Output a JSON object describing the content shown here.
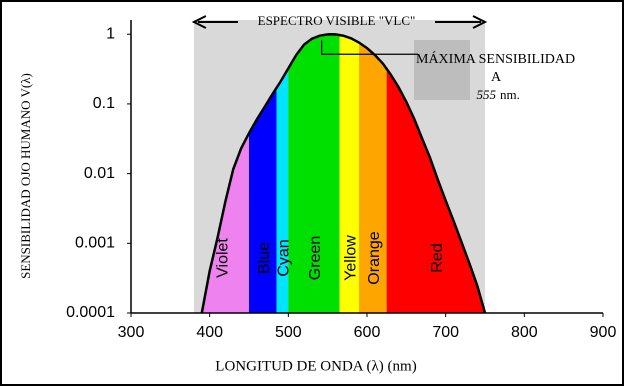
{
  "chart_data": {
    "type": "line",
    "xlabel": "LONGITUD DE ONDA (λ) (nm)",
    "ylabel": "SENSIBILIDAD OJO HUMANO V(λ)",
    "x": [
      390,
      400,
      410,
      420,
      430,
      440,
      450,
      460,
      470,
      480,
      490,
      500,
      510,
      520,
      530,
      540,
      550,
      555,
      560,
      570,
      580,
      590,
      600,
      610,
      620,
      630,
      640,
      650,
      660,
      670,
      680,
      690,
      700,
      710,
      720,
      730,
      740,
      750
    ],
    "values": [
      0.0001,
      0.0004,
      0.0012,
      0.004,
      0.0116,
      0.023,
      0.038,
      0.06,
      0.091,
      0.139,
      0.208,
      0.323,
      0.503,
      0.71,
      0.862,
      0.954,
      0.995,
      1,
      0.995,
      0.952,
      0.87,
      0.757,
      0.631,
      0.503,
      0.381,
      0.265,
      0.175,
      0.107,
      0.061,
      0.032,
      0.017,
      0.0082,
      0.0041,
      0.0021,
      0.00105,
      0.00052,
      0.00025,
      0.0001
    ],
    "color": "#000000",
    "log_y": true,
    "xlim": [
      300,
      900
    ],
    "ylim": [
      0.0001,
      1.6
    ],
    "xticks": [
      300,
      400,
      500,
      600,
      700,
      800,
      900
    ],
    "yticks": [
      1,
      0.1,
      0.01,
      0.001,
      0.0001
    ],
    "visible_range": {
      "label": "ESPECTRO VISIBLE \"VLC\"",
      "start": 380,
      "end": 750,
      "color": "#d9d9d9"
    },
    "bands": [
      {
        "name": "Violet",
        "color": "#ee82ee",
        "start": 380,
        "end": 450
      },
      {
        "name": "Blue",
        "color": "#0000ff",
        "start": 450,
        "end": 485
      },
      {
        "name": "Cyan",
        "color": "#00e5ff",
        "start": 485,
        "end": 500
      },
      {
        "name": "Green",
        "color": "#00e000",
        "start": 500,
        "end": 565
      },
      {
        "name": "Yellow",
        "color": "#ffff00",
        "start": 565,
        "end": 590
      },
      {
        "name": "Orange",
        "color": "#ffa500",
        "start": 590,
        "end": 625
      },
      {
        "name": "Red",
        "color": "#ff0000",
        "start": 625,
        "end": 750
      }
    ],
    "annotation": {
      "line1": "MÁXIMA SENSIBILIDAD",
      "line2": "A",
      "value": "555",
      "unit": "nm."
    }
  }
}
